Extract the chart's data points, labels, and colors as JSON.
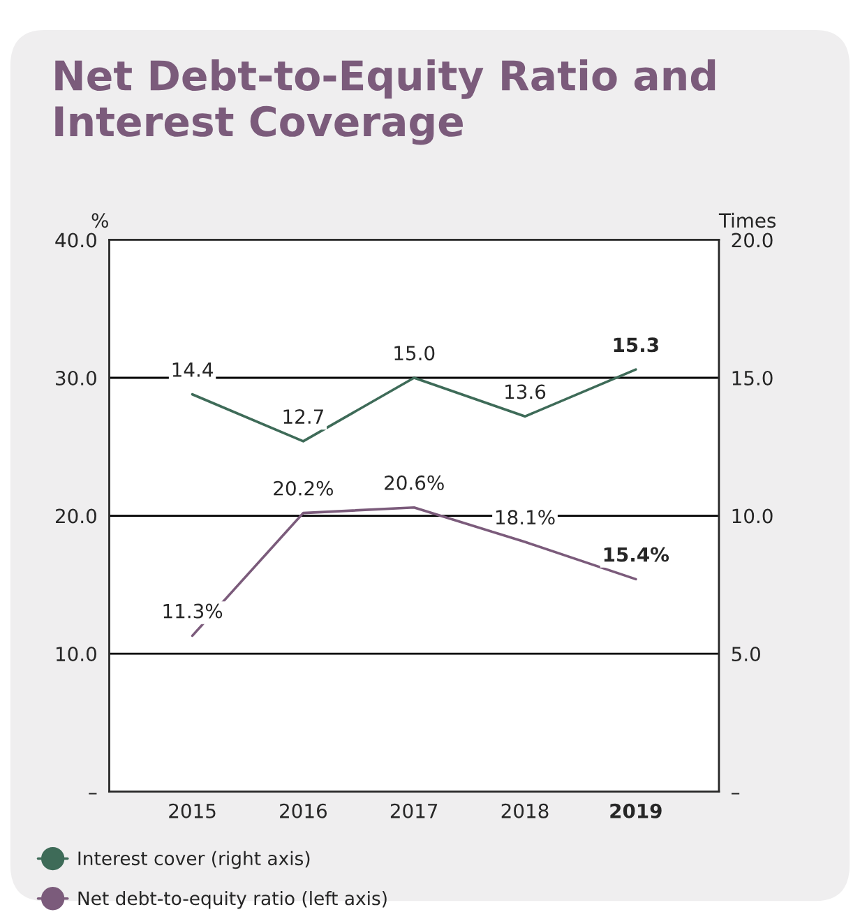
{
  "chart_data": {
    "type": "line",
    "title": "Net Debt-to-Equity Ratio and Interest Coverage",
    "categories": [
      "2015",
      "2016",
      "2017",
      "2018",
      "2019"
    ],
    "ylabel": "%",
    "y2label": "Times",
    "ylim": [
      0,
      40
    ],
    "yticks": [
      {
        "value": 0,
        "label": "–"
      },
      {
        "value": 10,
        "label": "10.0"
      },
      {
        "value": 20,
        "label": "20.0"
      },
      {
        "value": 30,
        "label": "30.0"
      },
      {
        "value": 40,
        "label": "40.0"
      }
    ],
    "y2lim": [
      0,
      20
    ],
    "y2ticks": [
      {
        "value": 0,
        "label": "–"
      },
      {
        "value": 5,
        "label": "5.0"
      },
      {
        "value": 10,
        "label": "10.0"
      },
      {
        "value": 15,
        "label": "15.0"
      },
      {
        "value": 20,
        "label": "20.0"
      }
    ],
    "grid": "y",
    "legend": "bottom",
    "series": [
      {
        "name": "Interest cover (right axis)",
        "color": "#3e6b58",
        "axis": "y2",
        "values": [
          14.4,
          12.7,
          15.0,
          13.6,
          15.3
        ],
        "value_labels": [
          "14.4",
          "12.7",
          "15.0",
          "13.6",
          "15.3"
        ]
      },
      {
        "name": "Net debt-to-equity ratio (left axis)",
        "color": "#7b5b7b",
        "values": [
          11.3,
          20.2,
          20.6,
          18.1,
          15.4
        ],
        "value_labels": [
          "11.3%",
          "20.2%",
          "20.6%",
          "18.1%",
          "15.4%"
        ]
      }
    ]
  }
}
